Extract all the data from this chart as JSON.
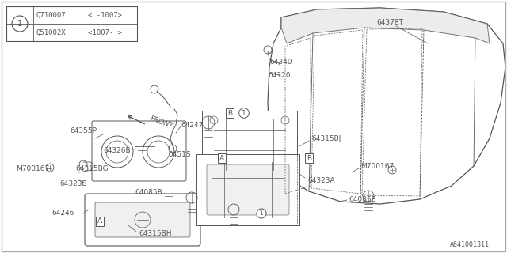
{
  "bg_color": "#ffffff",
  "line_color": "#555555",
  "diagram_id": "A641001311",
  "table_rows": [
    {
      "part": "Q710007",
      "note": "< -1007>"
    },
    {
      "part": "Q51002X",
      "note": "<1007- >"
    }
  ]
}
